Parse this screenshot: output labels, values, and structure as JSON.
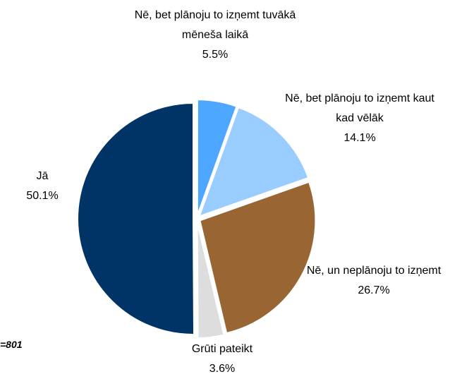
{
  "chart_data": {
    "type": "pie",
    "categories": [
      "Nē, bet plānoju to izņemt tuvākā mēneša laikā",
      "Nē, bet plānoju to izņemt kaut kad vēlāk",
      "Nē, un neplānoju to izņemt",
      "Grūti pateikt",
      "Jā"
    ],
    "values": [
      5.5,
      14.1,
      26.7,
      3.6,
      50.1
    ],
    "value_labels": [
      "5.5%",
      "14.1%",
      "26.7%",
      "3.6%",
      "50.1%"
    ],
    "colors": [
      "#4da6ff",
      "#99ccff",
      "#996633",
      "#dddddd",
      "#003366"
    ],
    "annotation": "=801"
  }
}
